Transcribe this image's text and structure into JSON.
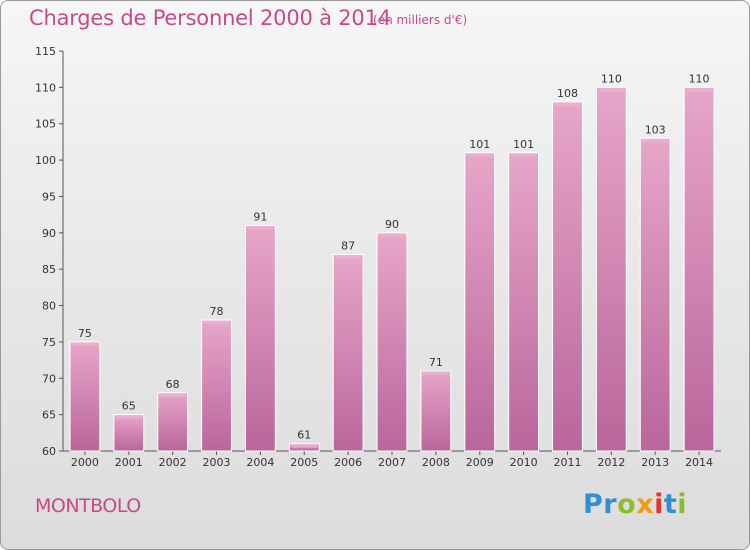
{
  "header": {
    "title": "Charges de Personnel 2000 à 2014",
    "subtitle": "(en milliers d'€)"
  },
  "footer": {
    "commune": "MONTBOLO",
    "logo_letters": [
      {
        "ch": "P",
        "color": "#2f8fd2"
      },
      {
        "ch": "r",
        "color": "#2f8fd2"
      },
      {
        "ch": "o",
        "color": "#8bbf2a"
      },
      {
        "ch": "x",
        "color": "#f29a12"
      },
      {
        "ch": "i",
        "color": "#e6342d"
      },
      {
        "ch": "t",
        "color": "#2f8fd2"
      },
      {
        "ch": "i",
        "color": "#8bbf2a"
      }
    ]
  },
  "colors": {
    "bar_fill": "#d98ab6",
    "bar_highlight": "#eab3d2",
    "bar_stroke": "#ffffff",
    "title": "#c64a8a"
  },
  "chart_data": {
    "type": "bar",
    "title": "Charges de Personnel 2000 à 2014",
    "categories": [
      "2000",
      "2001",
      "2002",
      "2003",
      "2004",
      "2005",
      "2006",
      "2007",
      "2008",
      "2009",
      "2010",
      "2011",
      "2012",
      "2013",
      "2014"
    ],
    "values": [
      75,
      65,
      68,
      78,
      91,
      61,
      87,
      90,
      71,
      101,
      101,
      108,
      110,
      103,
      110
    ],
    "ylim": [
      60,
      115
    ],
    "yticks": [
      60,
      65,
      70,
      75,
      80,
      85,
      90,
      95,
      100,
      105,
      110,
      115
    ],
    "grid": false,
    "legend": "none"
  }
}
